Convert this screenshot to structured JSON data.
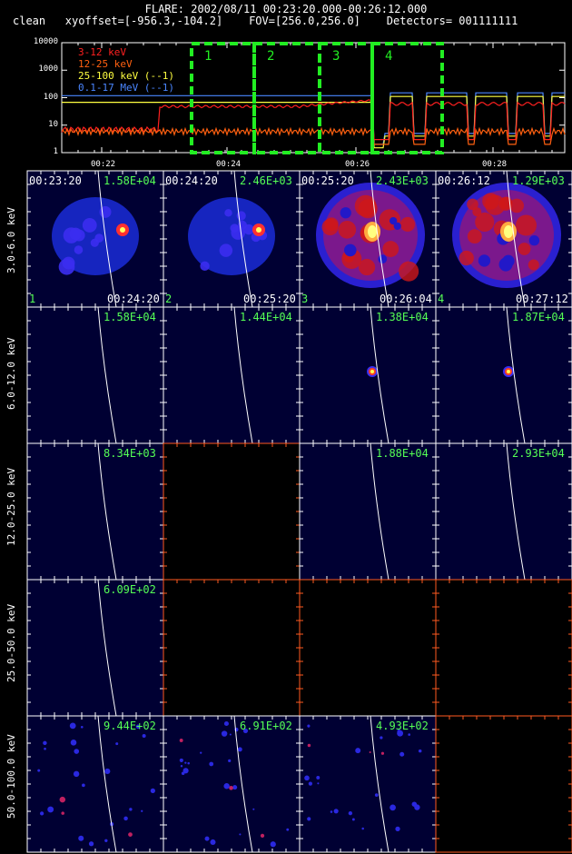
{
  "header": {
    "line1": "FLARE: 2002/08/11 00:23:20.000-00:26:12.000",
    "line2": "clean   xyoffset=[-956.3,-104.2]    FOV=[256.0,256.0]    Detectors= 001111111"
  },
  "lightcurve": {
    "y_ticks": [
      "10000",
      "1000",
      "100",
      "10",
      "1"
    ],
    "x_ticks": [
      "00:22",
      "00:24",
      "00:26",
      "00:28"
    ],
    "legend": [
      {
        "label": "3-12 keV",
        "color": "#ff2020"
      },
      {
        "label": "12-25 keV",
        "color": "#ff6010"
      },
      {
        "label": "25-100 keV (--1)",
        "color": "#ffff40"
      },
      {
        "label": "0.1-17 MeV (--1)",
        "color": "#4a86ff"
      }
    ],
    "boxes": [
      "1",
      "2",
      "3",
      "4"
    ]
  },
  "rows": [
    {
      "label": "3.0-6.0 keV"
    },
    {
      "label": "6.0-12.0 keV"
    },
    {
      "label": "12.0-25.0 keV"
    },
    {
      "label": "25.0-50.0 keV"
    },
    {
      "label": "50.0-100.0 keV"
    }
  ],
  "cells": [
    [
      {
        "max": "1.58E+04",
        "start": "00:23:20",
        "end": "00:24:20",
        "idx": "1",
        "kind": "blob"
      },
      {
        "max": "2.46E+03",
        "start": "00:24:20",
        "end": "00:25:20",
        "idx": "2",
        "kind": "blob"
      },
      {
        "max": "2.43E+03",
        "start": "00:25:20",
        "end": "00:26:04",
        "idx": "3",
        "kind": "big"
      },
      {
        "max": "1.29E+03",
        "start": "00:26:12",
        "end": "00:27:12",
        "idx": "4",
        "kind": "big"
      }
    ],
    [
      {
        "max": "1.58E+04",
        "kind": "empty"
      },
      {
        "max": "1.44E+04",
        "kind": "empty"
      },
      {
        "max": "1.38E+04",
        "kind": "dot"
      },
      {
        "max": "1.87E+04",
        "kind": "dot"
      }
    ],
    [
      {
        "max": "8.34E+03",
        "kind": "empty"
      },
      {
        "max": "",
        "kind": "black"
      },
      {
        "max": "1.88E+04",
        "kind": "empty"
      },
      {
        "max": "2.93E+04",
        "kind": "empty"
      }
    ],
    [
      {
        "max": "6.09E+02",
        "kind": "empty"
      },
      {
        "max": "",
        "kind": "black"
      },
      {
        "max": "",
        "kind": "black"
      },
      {
        "max": "",
        "kind": "black"
      }
    ],
    [
      {
        "max": "9.44E+02",
        "kind": "noise"
      },
      {
        "max": "6.91E+02",
        "kind": "noise"
      },
      {
        "max": "4.93E+02",
        "kind": "noise"
      },
      {
        "max": "",
        "kind": "black"
      }
    ]
  ],
  "chart_data": {
    "type": "line",
    "x": [
      "00:22",
      "00:24",
      "00:26",
      "00:28"
    ],
    "series": [
      {
        "name": "3-12 keV",
        "values": [
          7,
          45,
          50,
          60
        ]
      },
      {
        "name": "12-25 keV",
        "values": [
          6,
          6,
          7,
          8
        ]
      },
      {
        "name": "25-100 keV (--1)",
        "values": [
          65,
          68,
          70,
          110
        ]
      },
      {
        "name": "0.1-17 MeV (--1)",
        "values": [
          115,
          115,
          115,
          150
        ]
      }
    ],
    "ylim": [
      1,
      10000
    ],
    "yscale": "log",
    "title": "FLARE: 2002/08/11 00:23:20.000-00:26:12.000"
  }
}
